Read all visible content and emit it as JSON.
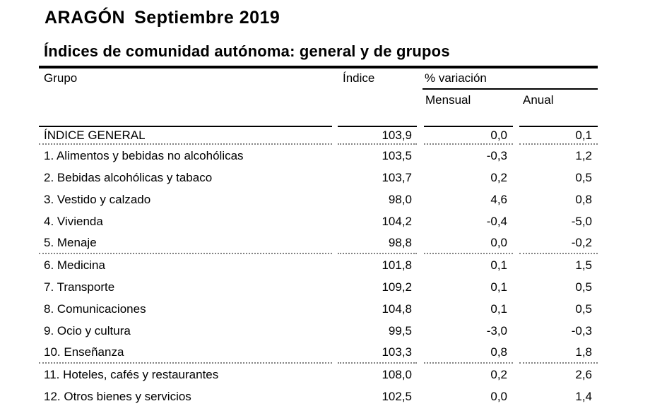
{
  "colors": {
    "background": "#ffffff",
    "text": "#000000",
    "rule": "#000000",
    "dotted_separator": "#828282"
  },
  "header": {
    "region": "ARAGÓN",
    "period": "Septiembre 2019",
    "table_title": "Índices de comunidad autónoma: general y de grupos"
  },
  "table": {
    "headers": {
      "grupo": "Grupo",
      "indice": "Índice",
      "variacion": "% variación",
      "mensual": "Mensual",
      "anual": "Anual"
    },
    "rows": [
      {
        "grupo": "ÍNDICE GENERAL",
        "indice": "103,9",
        "mensual": "0,0",
        "anual": "0,1"
      },
      {
        "grupo": "1. Alimentos y bebidas no alcohólicas",
        "indice": "103,5",
        "mensual": "-0,3",
        "anual": "1,2"
      },
      {
        "grupo": "2. Bebidas alcohólicas y tabaco",
        "indice": "103,7",
        "mensual": "0,2",
        "anual": "0,5"
      },
      {
        "grupo": "3. Vestido y calzado",
        "indice": "98,0",
        "mensual": "4,6",
        "anual": "0,8"
      },
      {
        "grupo": "4. Vivienda",
        "indice": "104,2",
        "mensual": "-0,4",
        "anual": "-5,0"
      },
      {
        "grupo": "5. Menaje",
        "indice": "98,8",
        "mensual": "0,0",
        "anual": "-0,2"
      },
      {
        "grupo": "6. Medicina",
        "indice": "101,8",
        "mensual": "0,1",
        "anual": "1,5"
      },
      {
        "grupo": "7. Transporte",
        "indice": "109,2",
        "mensual": "0,1",
        "anual": "0,5"
      },
      {
        "grupo": "8. Comunicaciones",
        "indice": "104,8",
        "mensual": "0,1",
        "anual": "0,5"
      },
      {
        "grupo": "9. Ocio y cultura",
        "indice": "99,5",
        "mensual": "-3,0",
        "anual": "-0,3"
      },
      {
        "grupo": "10. Enseñanza",
        "indice": "103,3",
        "mensual": "0,8",
        "anual": "1,8"
      },
      {
        "grupo": "11. Hoteles, cafés y restaurantes",
        "indice": "108,0",
        "mensual": "0,2",
        "anual": "2,6"
      },
      {
        "grupo": "12. Otros bienes y servicios",
        "indice": "102,5",
        "mensual": "0,0",
        "anual": "1,4"
      }
    ]
  }
}
